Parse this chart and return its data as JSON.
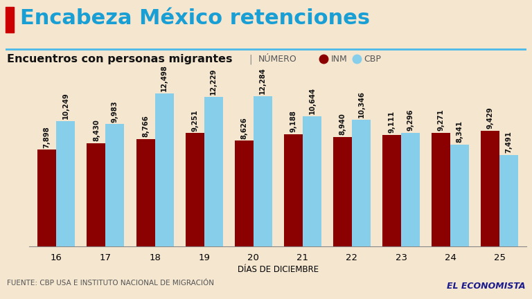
{
  "title": "Encabeza México retenciones",
  "subtitle": "Encuentros con personas migrantes",
  "subtitle_sep": "|",
  "subtitle_num": "NÚMERO",
  "legend_inm": "INM",
  "legend_cbp": "CBP",
  "xlabel": "DÍAS DE DICIEMBRE",
  "footer": "FUENTE: CBP USA E INSTITUTO NACIONAL DE MIGRACIÓN",
  "brand": "EL ECONOMISTA",
  "days": [
    16,
    17,
    18,
    19,
    20,
    21,
    22,
    23,
    24,
    25
  ],
  "inm_values": [
    7898,
    8430,
    8766,
    9251,
    8626,
    9188,
    8940,
    9111,
    9271,
    9429
  ],
  "cbp_values": [
    10249,
    9983,
    12498,
    12229,
    12284,
    10644,
    10346,
    9296,
    8341,
    7491
  ],
  "inm_color": "#8B0000",
  "cbp_color": "#87CEEB",
  "bg_color": "#F5E6D0",
  "title_color": "#1a9fd4",
  "accent_color": "#CC0000",
  "separator_color": "#4ab8e8",
  "footer_color": "#555555",
  "brand_color": "#1a1a8c",
  "bar_width": 0.38,
  "ylim": [
    0,
    14500
  ],
  "label_fontsize": 7.2,
  "tick_fontsize": 9.5,
  "xlabel_fontsize": 8.5,
  "subtitle_fontsize": 11.5,
  "title_fontsize": 22,
  "footer_fontsize": 7.5,
  "brand_fontsize": 9
}
